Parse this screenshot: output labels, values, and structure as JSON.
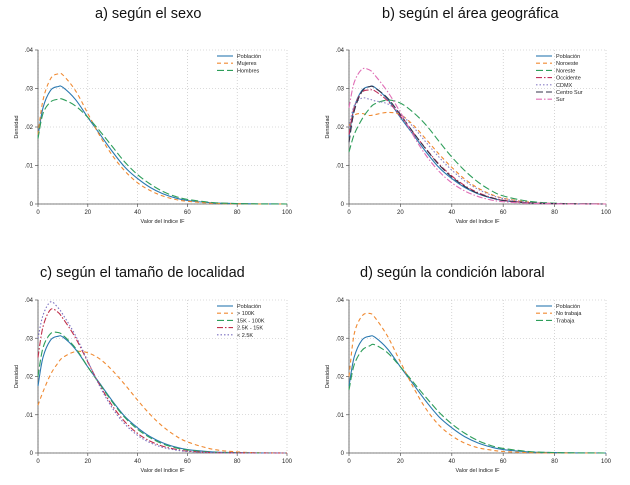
{
  "chart_data": [
    {
      "type": "line",
      "title": "a) según el sexo",
      "xlabel": "Valor del índice IF",
      "ylabel": "Densidad",
      "xlim": [
        0,
        100
      ],
      "ylim": [
        0,
        0.04
      ],
      "xticks": [
        "0",
        "20",
        "40",
        "60",
        "80",
        "100"
      ],
      "yticks": [
        "0",
        ".01",
        ".02",
        ".03",
        ".04"
      ],
      "legend_position": "top-right",
      "x": [
        0,
        2,
        5,
        8,
        10,
        15,
        20,
        25,
        30,
        35,
        40,
        45,
        50,
        55,
        60,
        70,
        80,
        90,
        100
      ],
      "series": [
        {
          "name": "Población",
          "color": "#2a78b0",
          "dash": "solid",
          "values": [
            0.0175,
            0.025,
            0.0295,
            0.0305,
            0.0303,
            0.0272,
            0.0225,
            0.018,
            0.0135,
            0.0095,
            0.0066,
            0.0043,
            0.0027,
            0.0016,
            0.0009,
            0.0003,
            0.0001,
            2e-05,
            0
          ]
        },
        {
          "name": "Mujeres",
          "color": "#f08a32",
          "dash": "dash",
          "values": [
            0.018,
            0.027,
            0.0325,
            0.0338,
            0.0335,
            0.0295,
            0.0235,
            0.0175,
            0.0125,
            0.0085,
            0.0055,
            0.0035,
            0.0021,
            0.0012,
            0.0007,
            0.0002,
            5e-05,
            0,
            0
          ]
        },
        {
          "name": "Hombres",
          "color": "#2e9e5a",
          "dash": "longdash",
          "values": [
            0.017,
            0.0235,
            0.0265,
            0.0272,
            0.0272,
            0.0255,
            0.0225,
            0.0188,
            0.0148,
            0.0108,
            0.0076,
            0.0052,
            0.0033,
            0.002,
            0.0012,
            0.0004,
            0.0001,
            3e-05,
            0
          ]
        }
      ]
    },
    {
      "type": "line",
      "title": "b) según el área geográfica",
      "xlabel": "Valor del índice IF",
      "ylabel": "Densidad",
      "xlim": [
        0,
        100
      ],
      "ylim": [
        0,
        0.04
      ],
      "xticks": [
        "0",
        "20",
        "40",
        "60",
        "80",
        "100"
      ],
      "yticks": [
        "0",
        ".01",
        ".02",
        ".03",
        ".04"
      ],
      "legend_position": "top-right",
      "x": [
        0,
        2,
        5,
        8,
        10,
        15,
        20,
        25,
        30,
        35,
        40,
        45,
        50,
        55,
        60,
        70,
        80,
        90,
        100
      ],
      "series": [
        {
          "name": "Población",
          "color": "#2a78b0",
          "dash": "solid",
          "values": [
            0.0175,
            0.025,
            0.0295,
            0.0305,
            0.0303,
            0.0272,
            0.0225,
            0.018,
            0.0135,
            0.0095,
            0.0066,
            0.0043,
            0.0027,
            0.0016,
            0.0009,
            0.0003,
            0.0001,
            2e-05,
            0
          ]
        },
        {
          "name": "Noroeste",
          "color": "#f08a32",
          "dash": "dash",
          "values": [
            0.02,
            0.023,
            0.0235,
            0.023,
            0.0232,
            0.0238,
            0.0232,
            0.0205,
            0.0168,
            0.013,
            0.0095,
            0.0065,
            0.0042,
            0.0026,
            0.0015,
            0.0005,
            0.0001,
            3e-05,
            0
          ]
        },
        {
          "name": "Noreste",
          "color": "#2e9e5a",
          "dash": "longdash",
          "values": [
            0.0135,
            0.018,
            0.022,
            0.0248,
            0.026,
            0.027,
            0.0262,
            0.0238,
            0.0205,
            0.0163,
            0.0122,
            0.0087,
            0.0058,
            0.0036,
            0.0021,
            0.0007,
            0.0002,
            4e-05,
            0
          ]
        },
        {
          "name": "Occidente",
          "color": "#c02f5a",
          "dash": "dashdot",
          "values": [
            0.018,
            0.025,
            0.029,
            0.0296,
            0.0294,
            0.0268,
            0.0228,
            0.0185,
            0.0143,
            0.0104,
            0.0073,
            0.0048,
            0.003,
            0.0018,
            0.001,
            0.0003,
            0.0001,
            2e-05,
            0
          ]
        },
        {
          "name": "CDMX",
          "color": "#8a7fc6",
          "dash": "dot",
          "values": [
            0.02,
            0.0255,
            0.0275,
            0.0272,
            0.0268,
            0.026,
            0.0235,
            0.02,
            0.016,
            0.0122,
            0.0088,
            0.006,
            0.0039,
            0.0024,
            0.0014,
            0.0004,
            0.0001,
            3e-05,
            0
          ]
        },
        {
          "name": "Centro Sur",
          "color": "#33334a",
          "dash": "longdash",
          "values": [
            0.016,
            0.024,
            0.0292,
            0.0305,
            0.0302,
            0.0275,
            0.0232,
            0.0186,
            0.0142,
            0.0102,
            0.007,
            0.0046,
            0.0028,
            0.0017,
            0.0009,
            0.0003,
            0.0001,
            2e-05,
            0
          ]
        },
        {
          "name": "Sur",
          "color": "#e06fb6",
          "dash": "dashdot",
          "values": [
            0.025,
            0.0315,
            0.035,
            0.0348,
            0.0335,
            0.0292,
            0.0238,
            0.0178,
            0.0126,
            0.0085,
            0.0055,
            0.0034,
            0.002,
            0.0011,
            0.0006,
            0.0002,
            4e-05,
            0,
            0
          ]
        }
      ]
    },
    {
      "type": "line",
      "title": "c) según el tamaño de localidad",
      "xlabel": "Valor del índice IF",
      "ylabel": "Densidad",
      "xlim": [
        0,
        100
      ],
      "ylim": [
        0,
        0.04
      ],
      "xticks": [
        "0",
        "20",
        "40",
        "60",
        "80",
        "100"
      ],
      "yticks": [
        "0",
        ".01",
        ".02",
        ".03",
        ".04"
      ],
      "legend_position": "top-right",
      "x": [
        0,
        2,
        5,
        8,
        10,
        15,
        20,
        25,
        30,
        35,
        40,
        45,
        50,
        55,
        60,
        70,
        80,
        90,
        100
      ],
      "series": [
        {
          "name": "Población",
          "color": "#2a78b0",
          "dash": "solid",
          "values": [
            0.0175,
            0.025,
            0.0295,
            0.0305,
            0.0303,
            0.0272,
            0.0225,
            0.018,
            0.0135,
            0.0095,
            0.0066,
            0.0043,
            0.0027,
            0.0016,
            0.0009,
            0.0003,
            0.0001,
            2e-05,
            0
          ]
        },
        {
          "name": "> 100K",
          "color": "#f08a32",
          "dash": "dash",
          "values": [
            0.0125,
            0.016,
            0.0205,
            0.0235,
            0.025,
            0.0265,
            0.0262,
            0.0245,
            0.0215,
            0.0178,
            0.0138,
            0.0101,
            0.007,
            0.0046,
            0.0029,
            0.001,
            0.0003,
            6e-05,
            0
          ]
        },
        {
          "name": "15K - 100K",
          "color": "#2e9e5a",
          "dash": "longdash",
          "values": [
            0.02,
            0.0275,
            0.0312,
            0.0315,
            0.0308,
            0.0275,
            0.0225,
            0.0178,
            0.0132,
            0.0092,
            0.0062,
            0.004,
            0.0024,
            0.0014,
            0.0008,
            0.0002,
            5e-05,
            0,
            0
          ]
        },
        {
          "name": "2.5K - 15K",
          "color": "#c0304a",
          "dash": "dashdot",
          "values": [
            0.025,
            0.033,
            0.0375,
            0.0368,
            0.0352,
            0.0302,
            0.0238,
            0.0175,
            0.0122,
            0.0081,
            0.0051,
            0.0031,
            0.0018,
            0.001,
            0.0005,
            0.0001,
            3e-05,
            0,
            0
          ]
        },
        {
          "name": "< 2.5K",
          "color": "#7a6fc0",
          "dash": "dot",
          "values": [
            0.03,
            0.036,
            0.0395,
            0.038,
            0.0362,
            0.0308,
            0.024,
            0.0172,
            0.0116,
            0.0075,
            0.0046,
            0.0027,
            0.0015,
            0.0008,
            0.0004,
            0.0001,
            2e-05,
            0,
            0
          ]
        }
      ]
    },
    {
      "type": "line",
      "title": "d) según la condición laboral",
      "xlabel": "Valor del índice IF",
      "ylabel": "Densidad",
      "xlim": [
        0,
        100
      ],
      "ylim": [
        0,
        0.04
      ],
      "xticks": [
        "0",
        "20",
        "40",
        "60",
        "80",
        "100"
      ],
      "yticks": [
        "0",
        ".01",
        ".02",
        ".03",
        ".04"
      ],
      "legend_position": "top-right",
      "x": [
        0,
        2,
        5,
        8,
        10,
        15,
        20,
        25,
        30,
        35,
        40,
        45,
        50,
        55,
        60,
        70,
        80,
        90,
        100
      ],
      "series": [
        {
          "name": "Población",
          "color": "#2a78b0",
          "dash": "solid",
          "values": [
            0.0175,
            0.025,
            0.0295,
            0.0305,
            0.0303,
            0.0272,
            0.0225,
            0.018,
            0.0135,
            0.0095,
            0.0066,
            0.0043,
            0.0027,
            0.0016,
            0.0009,
            0.0003,
            0.0001,
            2e-05,
            0
          ]
        },
        {
          "name": "No trabaja",
          "color": "#f08a32",
          "dash": "dash",
          "values": [
            0.02,
            0.031,
            0.0358,
            0.0365,
            0.0355,
            0.0305,
            0.0238,
            0.0172,
            0.0115,
            0.0073,
            0.0045,
            0.0026,
            0.0014,
            0.0008,
            0.0004,
            0.0001,
            2e-05,
            0,
            0
          ]
        },
        {
          "name": "Trabaja",
          "color": "#2e9e5a",
          "dash": "longdash",
          "values": [
            0.0165,
            0.023,
            0.0268,
            0.028,
            0.0283,
            0.0262,
            0.0225,
            0.0185,
            0.0145,
            0.0107,
            0.0076,
            0.0052,
            0.0033,
            0.002,
            0.0012,
            0.0004,
            0.0001,
            3e-05,
            0
          ]
        }
      ]
    }
  ]
}
